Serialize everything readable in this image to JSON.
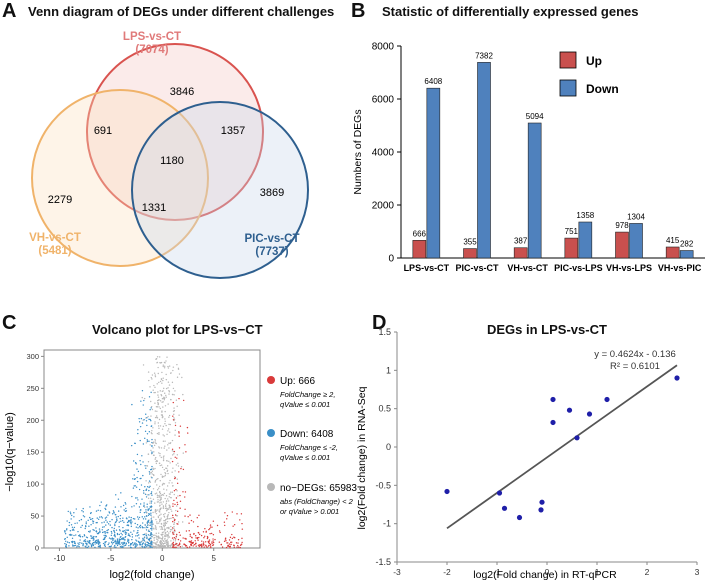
{
  "panel_labels": {
    "a": "A",
    "b": "B",
    "c": "C",
    "d": "D"
  },
  "colors": {
    "up": "#c9504e",
    "down": "#4f81bd",
    "lps": "#d9534f",
    "vh": "#f0b36a",
    "pic": "#2e5f8f",
    "nodeg": "#b8b8b8",
    "dot": "#1f1fa8",
    "fit": "#555555"
  },
  "chart_data": [
    {
      "type": "venn",
      "title": "Venn diagram of DEGs under different challenges",
      "sets": [
        {
          "name": "LPS-vs-CT",
          "total": "(7074)"
        },
        {
          "name": "VH-vs-CT",
          "total": "(5481)"
        },
        {
          "name": "PIC-vs-CT",
          "total": "(7737)"
        }
      ],
      "regions": {
        "lps_only": 3846,
        "vh_only": 2279,
        "pic_only": 3869,
        "lps_vh": 691,
        "lps_pic": 1357,
        "vh_pic": 1331,
        "all": 1180
      }
    },
    {
      "type": "bar",
      "title": "Statistic of  differentially expressed genes",
      "ylabel": "Numbers of DEGs",
      "ylim": [
        0,
        8000
      ],
      "yticks": [
        0,
        2000,
        4000,
        6000,
        8000
      ],
      "categories": [
        "LPS-vs-CT",
        "PIC-vs-CT",
        "VH-vs-CT",
        "PIC-vs-LPS",
        "VH-vs-LPS",
        "VH-vs-PIC"
      ],
      "series": [
        {
          "name": "Up",
          "values": [
            666,
            355,
            387,
            751,
            978,
            415
          ]
        },
        {
          "name": "Down",
          "values": [
            6408,
            7382,
            5094,
            1358,
            1304,
            282
          ]
        }
      ],
      "legend": "top-right"
    },
    {
      "type": "scatter",
      "title": "Volcano plot for LPS-vs−CT",
      "xlabel": "log2(fold change)",
      "ylabel": "−log10(q−value)",
      "xlim": [
        -11.5,
        9.5
      ],
      "ylim": [
        0,
        310
      ],
      "xticks": [
        -10,
        -5,
        0,
        5
      ],
      "yticks": [
        0,
        50,
        100,
        150,
        200,
        250,
        300
      ],
      "legend": [
        {
          "label": "Up: 666",
          "note1": "FoldChange ≥ 2,",
          "note2": "qValue ≤ 0.001"
        },
        {
          "label": "Down: 6408",
          "note1": "FoldChange ≤ -2,",
          "note2": "qValue ≤ 0.001"
        },
        {
          "label": "no−DEGs: 65983",
          "note1": "abs (FoldChange) < 2",
          "note2": "or qValue > 0.001"
        }
      ]
    },
    {
      "type": "scatter",
      "title": "DEGs in LPS-vs-CT",
      "xlabel": "log2(Fold change) in RT-qPCR",
      "ylabel": "log2(Fold change) in RNA-Seq",
      "xlim": [
        -3,
        3
      ],
      "ylim": [
        -1.5,
        1.5
      ],
      "xticks": [
        -3,
        -2,
        -1,
        0,
        1,
        2,
        3
      ],
      "yticks": [
        -1.5,
        -1,
        -0.5,
        0,
        0.5,
        1,
        1.5
      ],
      "points": [
        {
          "x": -2.0,
          "y": -0.58
        },
        {
          "x": -0.95,
          "y": -0.6
        },
        {
          "x": -0.85,
          "y": -0.8
        },
        {
          "x": -0.55,
          "y": -0.92
        },
        {
          "x": -0.1,
          "y": -0.72
        },
        {
          "x": -0.12,
          "y": -0.82
        },
        {
          "x": 0.12,
          "y": 0.32
        },
        {
          "x": 0.12,
          "y": 0.62
        },
        {
          "x": 0.45,
          "y": 0.48
        },
        {
          "x": 0.6,
          "y": 0.12
        },
        {
          "x": 0.85,
          "y": 0.43
        },
        {
          "x": 1.2,
          "y": 0.62
        },
        {
          "x": 2.6,
          "y": 0.9
        }
      ],
      "equation": "y = 0.4624x - 0.136",
      "r2": "R² = 0.6101",
      "fit": {
        "slope": 0.4624,
        "intercept": -0.136,
        "x_from": -2.0,
        "x_to": 2.6
      }
    }
  ]
}
